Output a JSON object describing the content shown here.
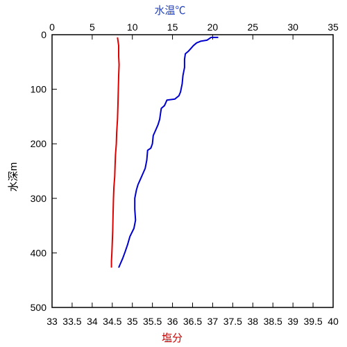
{
  "chart_data": {
    "type": "line",
    "title": "",
    "top_axis": {
      "label": "水温℃",
      "label_color": "#1f3fbf",
      "range": [
        0,
        35
      ],
      "ticks": [
        "0",
        "5",
        "10",
        "15",
        "20",
        "25",
        "30",
        "35"
      ]
    },
    "bottom_axis": {
      "label": "塩分",
      "label_color": "#cc0000",
      "range": [
        33,
        40
      ],
      "ticks": [
        "33",
        "33.5",
        "34",
        "34.5",
        "35",
        "35.5",
        "36",
        "36.5",
        "37",
        "37.5",
        "38",
        "38.5",
        "39",
        "39.5",
        "40"
      ]
    },
    "left_axis": {
      "label": "水深m",
      "range": [
        0,
        500
      ],
      "inverted": true,
      "ticks": [
        "0",
        "100",
        "200",
        "300",
        "400",
        "500"
      ]
    },
    "grid": false,
    "series": [
      {
        "key": "temperature",
        "axis": "top",
        "color": "#0000cc",
        "points": [
          [
            20.7,
            5
          ],
          [
            19.8,
            5
          ],
          [
            19.5,
            8
          ],
          [
            19.3,
            10
          ],
          [
            18.5,
            12
          ],
          [
            18.0,
            15
          ],
          [
            17.6,
            20
          ],
          [
            17.3,
            25
          ],
          [
            17.0,
            30
          ],
          [
            16.6,
            35
          ],
          [
            16.5,
            45
          ],
          [
            16.5,
            60
          ],
          [
            16.3,
            75
          ],
          [
            16.2,
            90
          ],
          [
            16.0,
            105
          ],
          [
            15.8,
            112
          ],
          [
            15.3,
            118
          ],
          [
            14.3,
            120
          ],
          [
            14.0,
            130
          ],
          [
            13.6,
            135
          ],
          [
            13.5,
            145
          ],
          [
            13.4,
            155
          ],
          [
            13.2,
            165
          ],
          [
            12.9,
            175
          ],
          [
            12.6,
            185
          ],
          [
            12.5,
            200
          ],
          [
            12.3,
            208
          ],
          [
            11.9,
            212
          ],
          [
            11.8,
            230
          ],
          [
            11.6,
            245
          ],
          [
            11.3,
            255
          ],
          [
            11.0,
            265
          ],
          [
            10.7,
            275
          ],
          [
            10.5,
            285
          ],
          [
            10.3,
            300
          ],
          [
            10.3,
            320
          ],
          [
            10.4,
            340
          ],
          [
            10.2,
            355
          ],
          [
            9.7,
            370
          ],
          [
            9.4,
            385
          ],
          [
            9.1,
            398
          ],
          [
            8.8,
            410
          ],
          [
            8.5,
            420
          ],
          [
            8.3,
            427
          ]
        ]
      },
      {
        "key": "salinity",
        "axis": "bottom",
        "color": "#dd0000",
        "points": [
          [
            34.63,
            5
          ],
          [
            34.66,
            20
          ],
          [
            34.66,
            40
          ],
          [
            34.67,
            55
          ],
          [
            34.66,
            75
          ],
          [
            34.65,
            100
          ],
          [
            34.64,
            130
          ],
          [
            34.63,
            155
          ],
          [
            34.61,
            180
          ],
          [
            34.6,
            200
          ],
          [
            34.58,
            220
          ],
          [
            34.57,
            240
          ],
          [
            34.56,
            260
          ],
          [
            34.54,
            280
          ],
          [
            34.53,
            300
          ],
          [
            34.52,
            330
          ],
          [
            34.51,
            360
          ],
          [
            34.5,
            380
          ],
          [
            34.49,
            400
          ],
          [
            34.48,
            415
          ],
          [
            34.48,
            427
          ]
        ]
      }
    ]
  }
}
